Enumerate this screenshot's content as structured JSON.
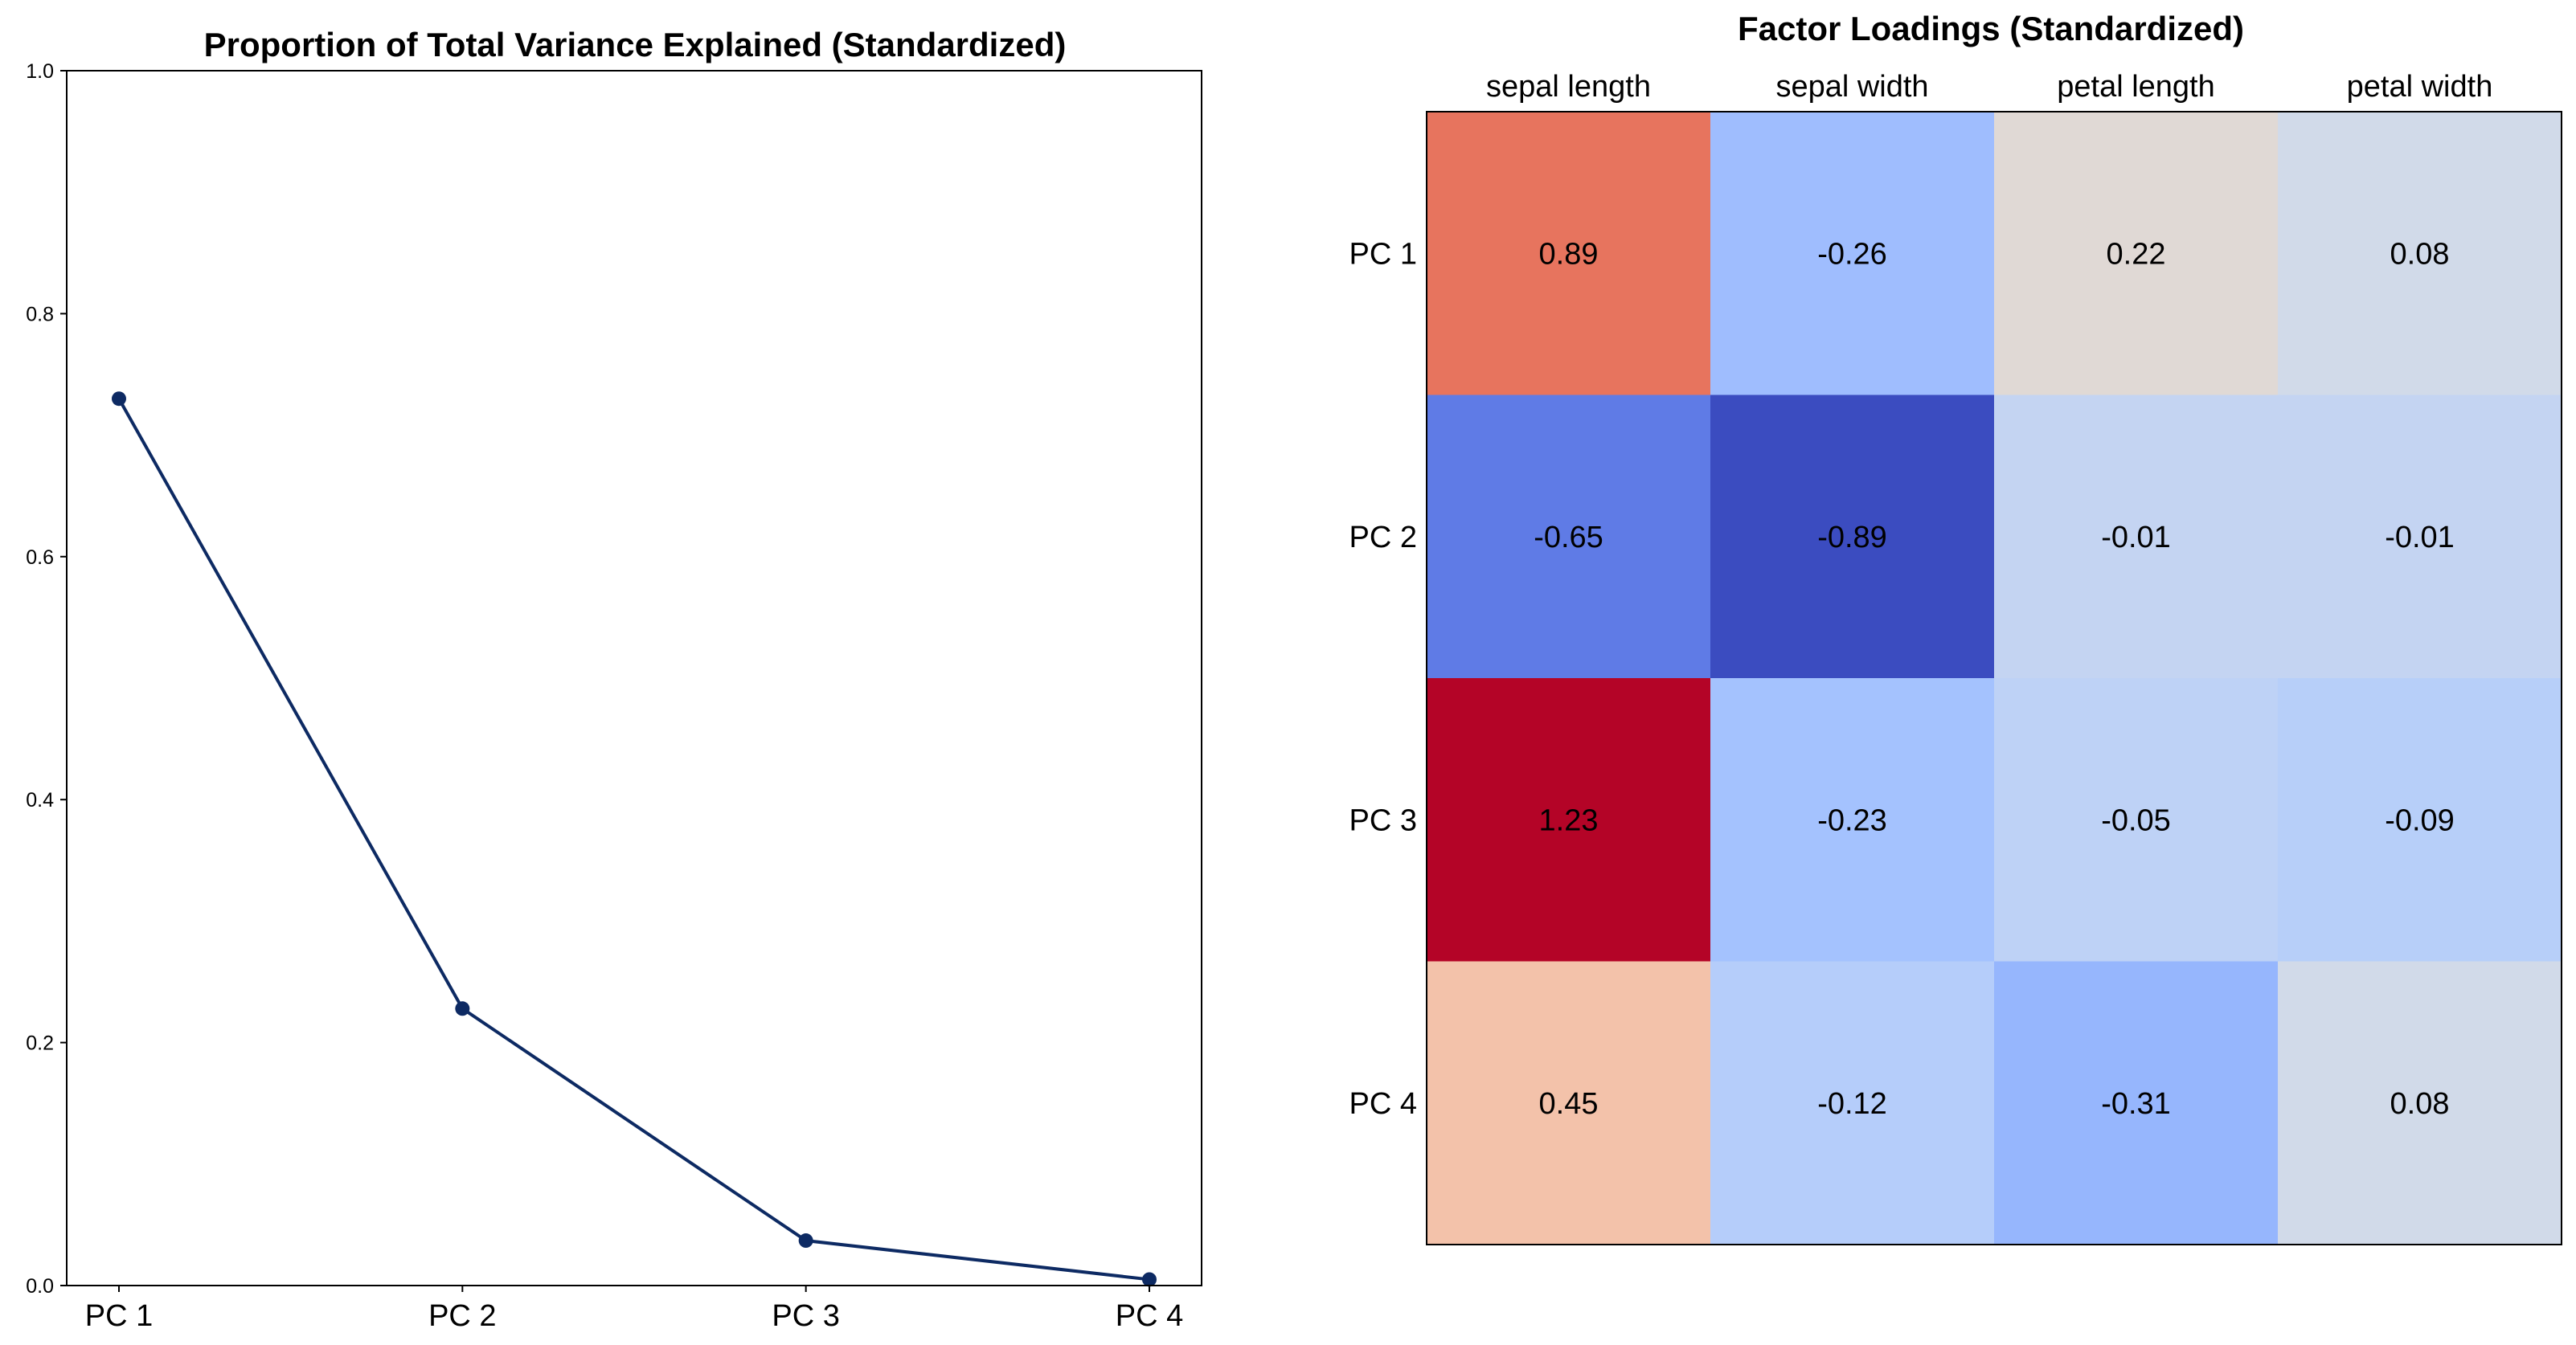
{
  "chart_data": [
    {
      "type": "line",
      "title": "Proportion of Total Variance Explained (Standardized)",
      "xlabel": "",
      "ylabel": "",
      "categories": [
        "PC 1",
        "PC 2",
        "PC 3",
        "PC 4"
      ],
      "values": [
        0.73,
        0.228,
        0.037,
        0.005
      ],
      "ylim": [
        0.0,
        1.0
      ],
      "yticks": [
        "0.0",
        "0.2",
        "0.4",
        "0.6",
        "0.8",
        "1.0"
      ],
      "grid": false,
      "marker": "circle",
      "color": "#0d2a63"
    },
    {
      "type": "heatmap",
      "title": "Factor Loadings (Standardized)",
      "columns": [
        "sepal length",
        "sepal width",
        "petal length",
        "petal width"
      ],
      "rows": [
        "PC 1",
        "PC 2",
        "PC 3",
        "PC 4"
      ],
      "values": [
        [
          0.89,
          -0.26,
          0.22,
          0.08
        ],
        [
          -0.65,
          -0.89,
          -0.01,
          -0.01
        ],
        [
          1.23,
          -0.23,
          -0.05,
          -0.09
        ],
        [
          0.45,
          -0.12,
          -0.31,
          0.08
        ]
      ],
      "labels": [
        [
          "0.89",
          "-0.26",
          "0.22",
          "0.08"
        ],
        [
          "-0.65",
          "-0.89",
          "-0.01",
          "-0.01"
        ],
        [
          "1.23",
          "-0.23",
          "-0.05",
          "-0.09"
        ],
        [
          "0.45",
          "-0.12",
          "-0.31",
          "0.08"
        ]
      ],
      "colors": [
        [
          "#e7745e",
          "#9fbdfe",
          "#e0d9d5",
          "#d1dae9"
        ],
        [
          "#5f7be6",
          "#3b4cc0",
          "#c4d4f2",
          "#c4d4f2"
        ],
        [
          "#b40427",
          "#a4c2fe",
          "#bed2f6",
          "#b7cff9"
        ],
        [
          "#f3c2aa",
          "#b5cdfa",
          "#96b6fd",
          "#d1dae9"
        ]
      ],
      "colormap": "coolwarm"
    }
  ]
}
